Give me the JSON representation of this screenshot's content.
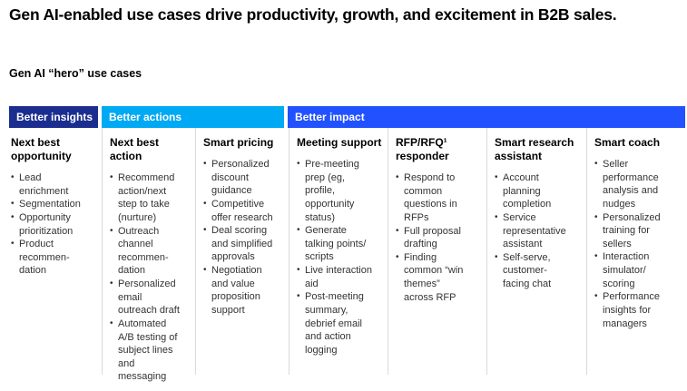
{
  "page": {
    "title": "Gen AI-enabled use cases drive productivity, growth, and excitement in B2B sales.",
    "subtitle": "Gen AI “hero” use cases"
  },
  "colors": {
    "band_insights": "#1b2e8f",
    "band_actions": "#00a9f4",
    "band_impact": "#2251ff",
    "divider": "#d9d9d9",
    "body_text": "#333333"
  },
  "bullet_char": "•",
  "bands": [
    {
      "label": "Better insights",
      "columns_spanned": 1
    },
    {
      "label": "Better actions",
      "columns_spanned": 2
    },
    {
      "label": "Better impact",
      "columns_spanned": 4
    }
  ],
  "columns": [
    {
      "band": "Better insights",
      "header": "Next best opportunity",
      "items": [
        "Lead enrichment",
        "Segmentation",
        "Opportunity prioritization",
        "Product recommen-dation"
      ]
    },
    {
      "band": "Better actions",
      "header": "Next best action",
      "items": [
        "Recommend action/next step to take (nurture)",
        "Outreach channel recommen-dation",
        "Personalized email outreach draft",
        "Automated A/B testing of subject lines and messaging"
      ]
    },
    {
      "band": "Better actions",
      "header": "Smart pricing",
      "items": [
        "Personalized discount guidance",
        "Competitive offer research",
        "Deal scoring and simplified approvals",
        "Negotiation and value proposition support"
      ]
    },
    {
      "band": "Better impact",
      "header": "Meeting support",
      "items": [
        "Pre-meeting prep (eg, profile, opportunity status)",
        "Generate talking points/ scripts",
        "Live interaction aid",
        "Post-meeting summary, debrief email and action logging"
      ]
    },
    {
      "band": "Better impact",
      "header": "RFP/RFQ¹ responder",
      "items": [
        "Respond to common questions in RFPs",
        "Full proposal drafting",
        "Finding common “win themes” across RFP"
      ]
    },
    {
      "band": "Better impact",
      "header": "Smart research assistant",
      "items": [
        "Account planning completion",
        "Service representative assistant",
        "Self-serve, customer-facing chat"
      ]
    },
    {
      "band": "Better impact",
      "header": "Smart coach",
      "items": [
        "Seller performance analysis and nudges",
        "Personalized training for sellers",
        "Interaction simulator/ scoring",
        "Performance insights for managers"
      ]
    }
  ]
}
